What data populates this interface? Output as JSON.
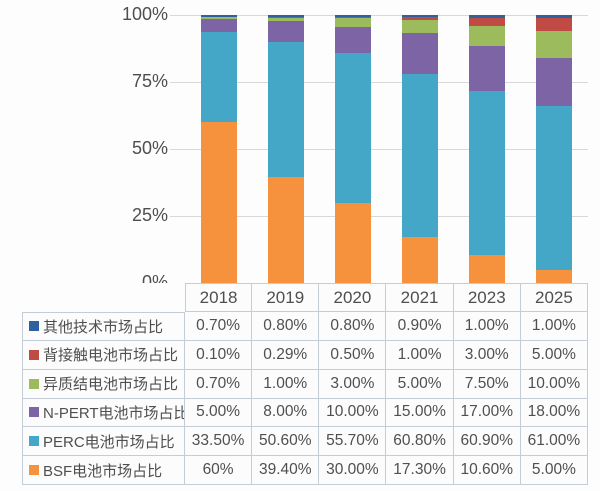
{
  "chart_data": {
    "type": "bar",
    "variant": "stacked-100-percent-column",
    "categories": [
      "2018",
      "2019",
      "2020",
      "2021",
      "2023",
      "2025"
    ],
    "series": [
      {
        "name": "其他技术市场占比",
        "color": "#2f609f",
        "values": [
          0.7,
          0.8,
          0.8,
          0.9,
          1.0,
          1.0
        ],
        "labels": [
          "0.70%",
          "0.80%",
          "0.80%",
          "0.90%",
          "1.00%",
          "1.00%"
        ]
      },
      {
        "name": "背接触电池市场占比",
        "color": "#c04a44",
        "values": [
          0.1,
          0.29,
          0.5,
          1.0,
          3.0,
          5.0
        ],
        "labels": [
          "0.10%",
          "0.29%",
          "0.50%",
          "1.00%",
          "3.00%",
          "5.00%"
        ]
      },
      {
        "name": "异质结电池市场占比",
        "color": "#9cbb5c",
        "values": [
          0.7,
          1.0,
          3.0,
          5.0,
          7.5,
          10.0
        ],
        "labels": [
          "0.70%",
          "1.00%",
          "3.00%",
          "5.00%",
          "7.50%",
          "10.00%"
        ]
      },
      {
        "name": "N-PERT电池市场占比",
        "color": "#7c64a5",
        "values": [
          5.0,
          8.0,
          10.0,
          15.0,
          17.0,
          18.0
        ],
        "labels": [
          "5.00%",
          "8.00%",
          "10.00%",
          "15.00%",
          "17.00%",
          "18.00%"
        ]
      },
      {
        "name": "PERC电池市场占比",
        "color": "#44a7c8",
        "values": [
          33.5,
          50.6,
          55.7,
          60.8,
          60.9,
          61.0
        ],
        "labels": [
          "33.50%",
          "50.60%",
          "55.70%",
          "60.80%",
          "60.90%",
          "61.00%"
        ]
      },
      {
        "name": "BSF电池市场占比",
        "color": "#f6913e",
        "values": [
          60.0,
          39.4,
          30.0,
          17.3,
          10.6,
          5.0
        ],
        "labels": [
          "60%",
          "39.40%",
          "30.00%",
          "17.30%",
          "10.60%",
          "5.00%"
        ]
      }
    ],
    "stack_order_bottom_to_top": [
      "BSF电池市场占比",
      "PERC电池市场占比",
      "N-PERT电池市场占比",
      "异质结电池市场占比",
      "背接触电池市场占比",
      "其他技术市场占比"
    ],
    "y_axis": {
      "ticks": [
        "100%",
        "75%",
        "50%",
        "25%",
        "0%"
      ],
      "min": 0,
      "max": 100,
      "unit": "%",
      "grid": true
    },
    "legend_position": "table-rows-left",
    "title": "",
    "xlabel": "",
    "ylabel": ""
  },
  "style_colors": {
    "gridline": "#d8d8d8",
    "table_border": "#c4cdd5",
    "text": "#4f4f4f",
    "background": "#fdfdfe"
  }
}
